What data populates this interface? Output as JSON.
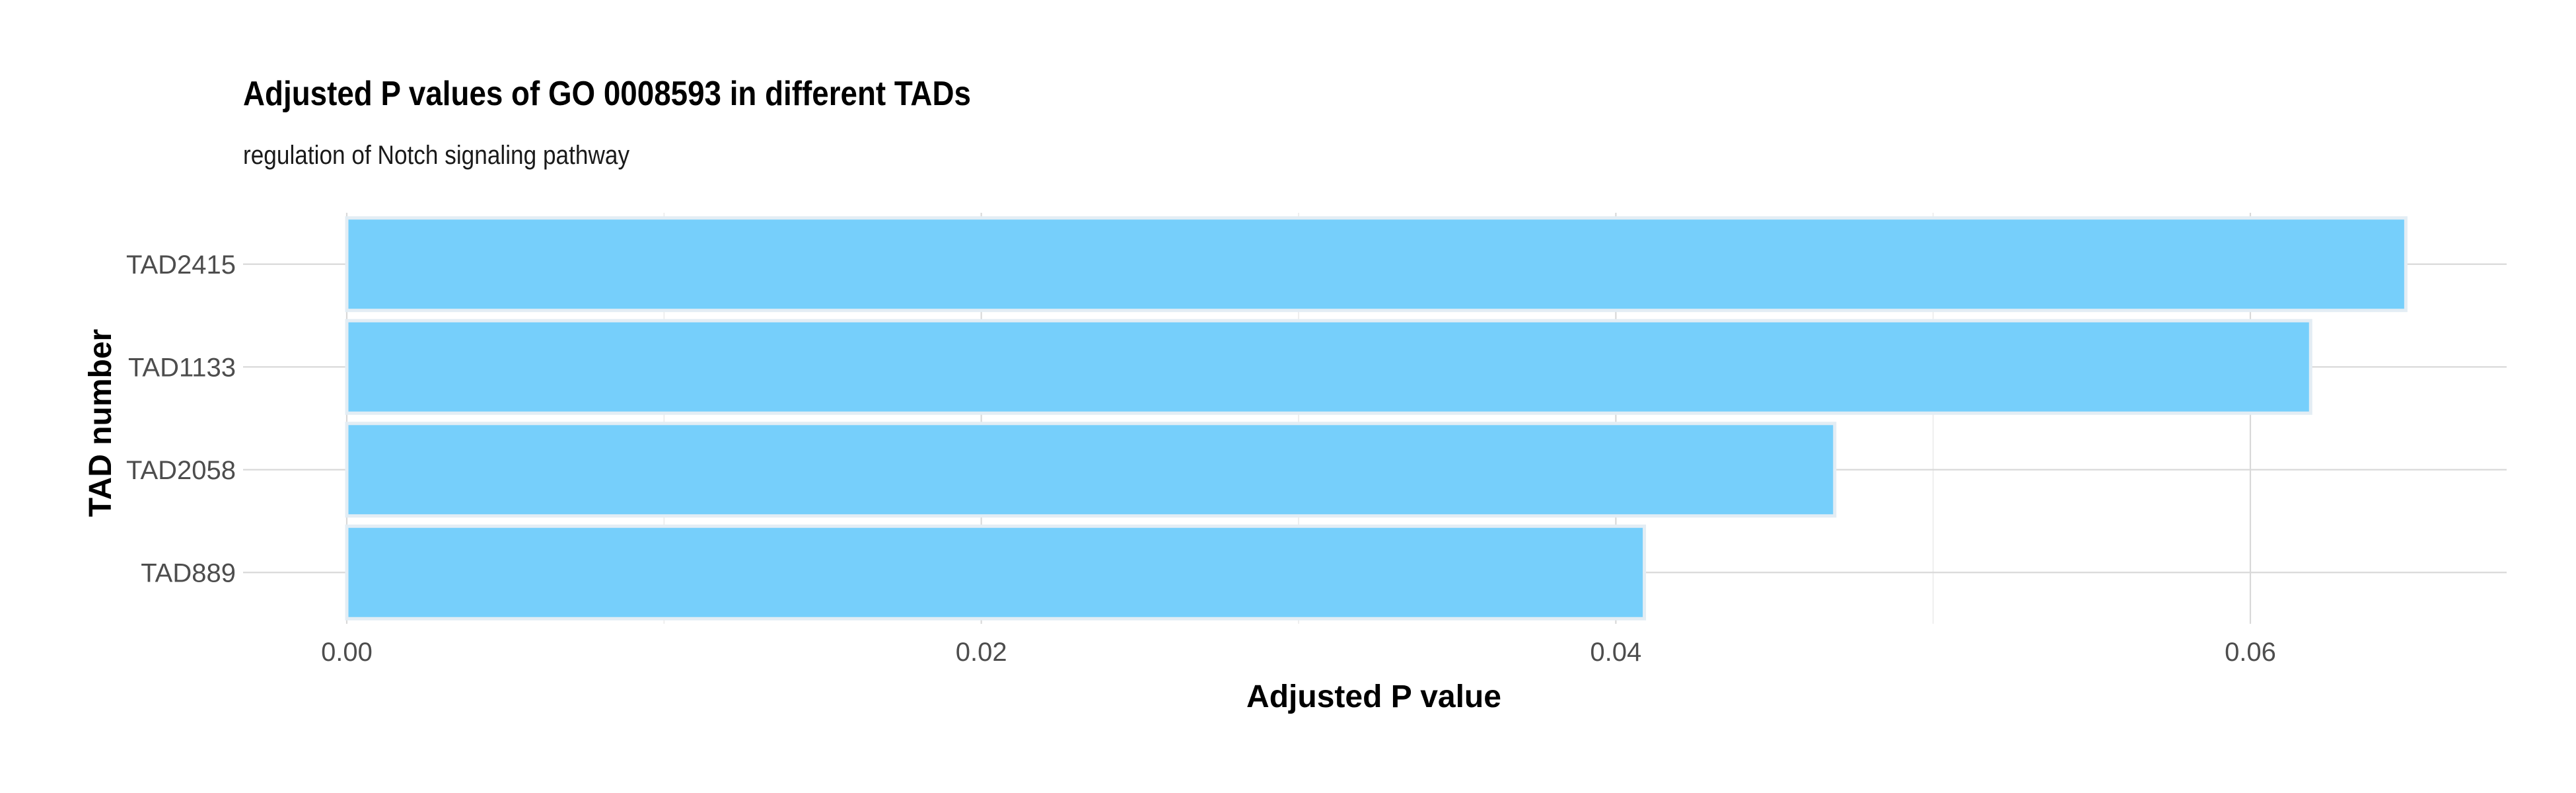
{
  "chart_data": {
    "type": "bar",
    "orientation": "horizontal",
    "title": "Adjusted P values of GO 0008593 in different TADs",
    "subtitle": "regulation of Notch signaling pathway",
    "xlabel": "Adjusted P value",
    "ylabel": "TAD number",
    "categories": [
      "TAD2415",
      "TAD1133",
      "TAD2058",
      "TAD889"
    ],
    "values": [
      0.0649,
      0.0619,
      0.0469,
      0.0409
    ],
    "xlim": [
      -0.0033,
      0.0681
    ],
    "x_ticks": [
      0.0,
      0.02,
      0.04,
      0.06
    ],
    "x_tick_labels": [
      "0.00",
      "0.02",
      "0.04",
      "0.06"
    ],
    "x_minor_ticks": [
      0.01,
      0.03,
      0.05
    ],
    "grid": true,
    "legend": "none",
    "colors": {
      "bar_fill": "#73cefb",
      "bar_outline": "#e3edf4",
      "grid_major": "#d9d9d9",
      "grid_minor": "#ebebeb",
      "tick_text": "#4d4d4d"
    }
  }
}
